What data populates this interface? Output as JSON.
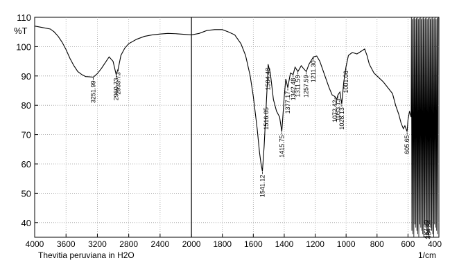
{
  "chart_data": {
    "type": "line",
    "ylabel": "%T",
    "xlabel": "1/cm",
    "sample_label": "Thevitia peruviana in H2O",
    "xlim": [
      4000,
      400
    ],
    "ylim": [
      35,
      110
    ],
    "x_ticks": [
      4000,
      3600,
      3200,
      2800,
      2400,
      2000,
      1800,
      1600,
      1400,
      1200,
      1000,
      800,
      600,
      400
    ],
    "y_ticks": [
      40,
      50,
      60,
      70,
      80,
      90,
      100,
      110
    ],
    "grid": true,
    "series": [
      {
        "color": "#000000",
        "x": [
          4000,
          3900,
          3800,
          3750,
          3700,
          3650,
          3600,
          3550,
          3500,
          3450,
          3400,
          3350,
          3300,
          3251.99,
          3200,
          3150,
          3100,
          3050,
          3000,
          2960.73,
          2933.73,
          2900,
          2850,
          2800,
          2700,
          2600,
          2500,
          2400,
          2300,
          2200,
          2100,
          2000,
          1950,
          1900,
          1850,
          1800,
          1760,
          1720,
          1680,
          1650,
          1620,
          1600,
          1575,
          1560,
          1550,
          1541.12,
          1530,
          1516.05,
          1505,
          1504.48,
          1490,
          1470,
          1450,
          1430,
          1415.75,
          1400,
          1390,
          1377.17,
          1360,
          1342.48,
          1330,
          1311.59,
          1290,
          1275,
          1257.59,
          1240,
          1211.3,
          1190,
          1170,
          1150,
          1130,
          1110,
          1090,
          1072.42,
          1060,
          1053.13,
          1040,
          1028.13,
          1015,
          1001.06,
          985,
          960,
          930,
          900,
          880,
          865,
          850,
          820,
          790,
          760,
          730,
          700,
          680,
          660,
          645,
          630,
          620,
          605.65,
          600,
          590,
          580
        ],
        "y": [
          107,
          106.5,
          106,
          105,
          103.5,
          101.5,
          99,
          96,
          93.5,
          91.5,
          90.5,
          89.8,
          89.7,
          89.6,
          90.8,
          92.5,
          94.5,
          96.5,
          95,
          90.5,
          92.5,
          97,
          99.5,
          101,
          102.5,
          103.5,
          104,
          104.3,
          104.5,
          104.4,
          104.2,
          104,
          104.5,
          105.5,
          105.8,
          105.8,
          105,
          104,
          101,
          97,
          90,
          83,
          72,
          64,
          60,
          57.5,
          66,
          80.5,
          92,
          94,
          91,
          82,
          78,
          76,
          71,
          83,
          89,
          86,
          91,
          90.5,
          93,
          91.5,
          93.5,
          92.5,
          91.5,
          94,
          96.5,
          96.8,
          95,
          92,
          89,
          86,
          83.5,
          83,
          82,
          83.5,
          84.5,
          80.5,
          88,
          93,
          97,
          98,
          97.5,
          98.5,
          99.2,
          97,
          94,
          91,
          89.5,
          88,
          86,
          84,
          80,
          77,
          74,
          72,
          73,
          71,
          75,
          78,
          76
        ]
      }
    ],
    "peak_labels": [
      {
        "x": 3251.99,
        "y": 89.6,
        "text": "3251.99"
      },
      {
        "x": 2960.73,
        "y": 90.5,
        "text": "2960.73"
      },
      {
        "x": 2933.73,
        "y": 92.5,
        "text": "2933.73"
      },
      {
        "x": 1541.12,
        "y": 57.5,
        "text": "1541.12"
      },
      {
        "x": 1516.05,
        "y": 80.5,
        "text": "1516.05"
      },
      {
        "x": 1504.48,
        "y": 94,
        "text": "1504.48"
      },
      {
        "x": 1415.75,
        "y": 71,
        "text": "1415.75"
      },
      {
        "x": 1377.17,
        "y": 86,
        "text": "1377.17"
      },
      {
        "x": 1342.48,
        "y": 90.5,
        "text": "1342.48"
      },
      {
        "x": 1311.59,
        "y": 91.5,
        "text": "1311.59"
      },
      {
        "x": 1257.59,
        "y": 91.5,
        "text": "1257.59"
      },
      {
        "x": 1211.3,
        "y": 96.5,
        "text": "1211.30"
      },
      {
        "x": 1072.42,
        "y": 83,
        "text": "1072.42"
      },
      {
        "x": 1053.13,
        "y": 83.5,
        "text": "1053.13"
      },
      {
        "x": 1028.13,
        "y": 80.5,
        "text": "1028.13"
      },
      {
        "x": 1001.06,
        "y": 93,
        "text": "1001.06"
      },
      {
        "x": 605.65,
        "y": 71,
        "text": "605.65"
      },
      {
        "x": 482.2,
        "y": 37,
        "text": "482.20"
      },
      {
        "x": 464.84,
        "y": 37,
        "text": "464.84"
      }
    ]
  }
}
